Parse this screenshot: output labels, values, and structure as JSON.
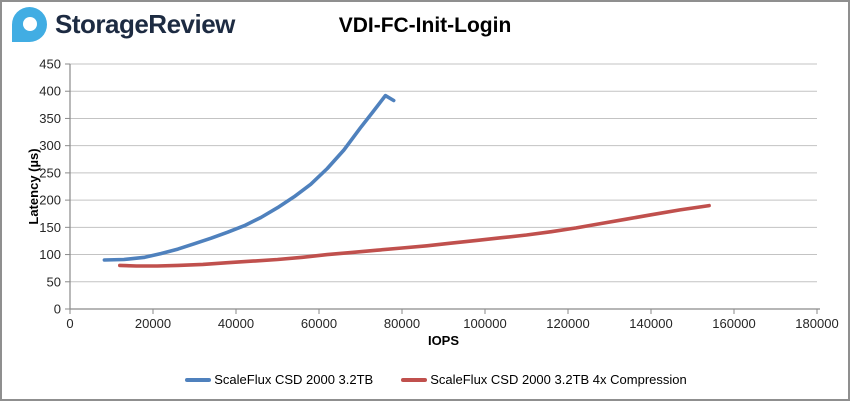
{
  "header": {
    "brand": "StorageReview",
    "logo_color": "#41ade3",
    "brand_color": "#1d2b42"
  },
  "chart_data": {
    "type": "line",
    "title": "VDI-FC-Init-Login",
    "xlabel": "IOPS",
    "ylabel": "Latency (µs)",
    "xlim": [
      0,
      180000
    ],
    "ylim": [
      0,
      450
    ],
    "xticks": [
      0,
      20000,
      40000,
      60000,
      80000,
      100000,
      120000,
      140000,
      160000,
      180000
    ],
    "yticks": [
      0,
      50,
      100,
      150,
      200,
      250,
      300,
      350,
      400,
      450
    ],
    "grid": "horizontal",
    "legend_position": "bottom",
    "series": [
      {
        "name": "ScaleFlux CSD 2000 3.2TB",
        "color": "#4F81BD",
        "points": [
          [
            8300,
            90
          ],
          [
            13000,
            91
          ],
          [
            18000,
            95
          ],
          [
            22000,
            102
          ],
          [
            26000,
            110
          ],
          [
            30000,
            120
          ],
          [
            34000,
            130
          ],
          [
            38000,
            141
          ],
          [
            42000,
            153
          ],
          [
            46000,
            168
          ],
          [
            50000,
            186
          ],
          [
            54000,
            206
          ],
          [
            58000,
            229
          ],
          [
            62000,
            258
          ],
          [
            66000,
            292
          ],
          [
            70000,
            333
          ],
          [
            73000,
            362
          ],
          [
            76000,
            392
          ],
          [
            78000,
            383
          ]
        ]
      },
      {
        "name": "ScaleFlux CSD 2000 3.2TB 4x Compression",
        "color": "#C0504D",
        "points": [
          [
            12000,
            80
          ],
          [
            16000,
            79
          ],
          [
            21000,
            79
          ],
          [
            26000,
            80
          ],
          [
            32000,
            82
          ],
          [
            38000,
            85
          ],
          [
            44000,
            88
          ],
          [
            50000,
            91
          ],
          [
            56000,
            95
          ],
          [
            62000,
            100
          ],
          [
            68000,
            104
          ],
          [
            74000,
            108
          ],
          [
            80000,
            112
          ],
          [
            86000,
            116
          ],
          [
            92000,
            121
          ],
          [
            98000,
            126
          ],
          [
            104000,
            131
          ],
          [
            110000,
            136
          ],
          [
            116000,
            142
          ],
          [
            122000,
            149
          ],
          [
            128000,
            157
          ],
          [
            134000,
            165
          ],
          [
            140000,
            173
          ],
          [
            147000,
            182
          ],
          [
            154000,
            190
          ]
        ]
      }
    ]
  }
}
